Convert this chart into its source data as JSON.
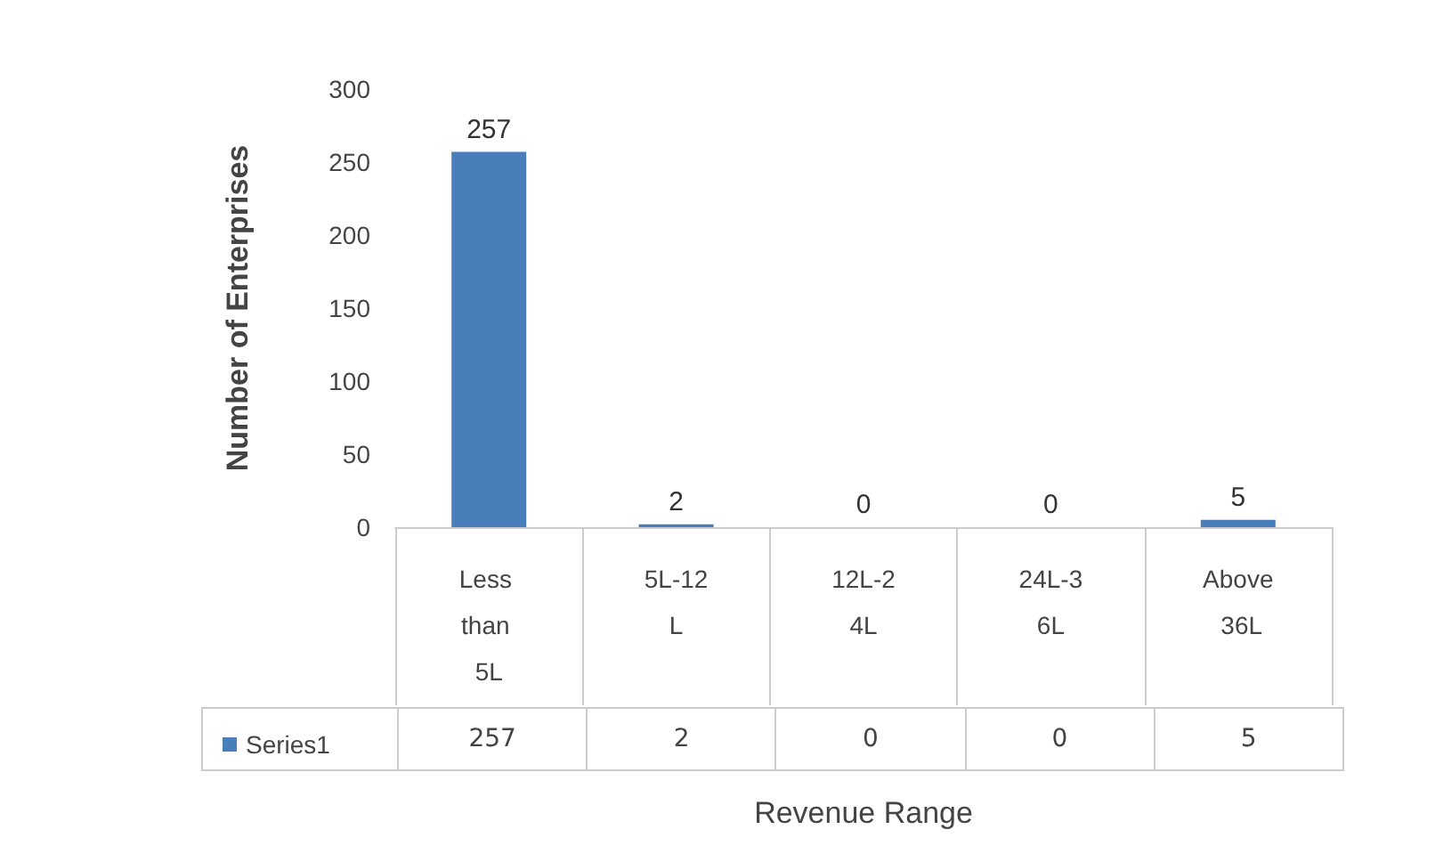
{
  "chart_data": {
    "type": "bar",
    "xlabel": "Revenue Range",
    "ylabel": "Number of Enterprises",
    "categories": [
      "Less than 5L",
      "5L-12L",
      "12L-24L",
      "24L-36L",
      "Above 36L"
    ],
    "series": [
      {
        "name": "Series1",
        "color": "#4a7ebb",
        "values": [
          257,
          2,
          0,
          0,
          5
        ],
        "value_labels": [
          "257",
          "2",
          "0",
          "0",
          "5"
        ]
      }
    ],
    "ylim": [
      0,
      300
    ],
    "yticks": [
      0,
      50,
      100,
      150,
      200,
      250,
      300
    ],
    "grid": false,
    "data_labels": true,
    "legend": "bottom left"
  }
}
